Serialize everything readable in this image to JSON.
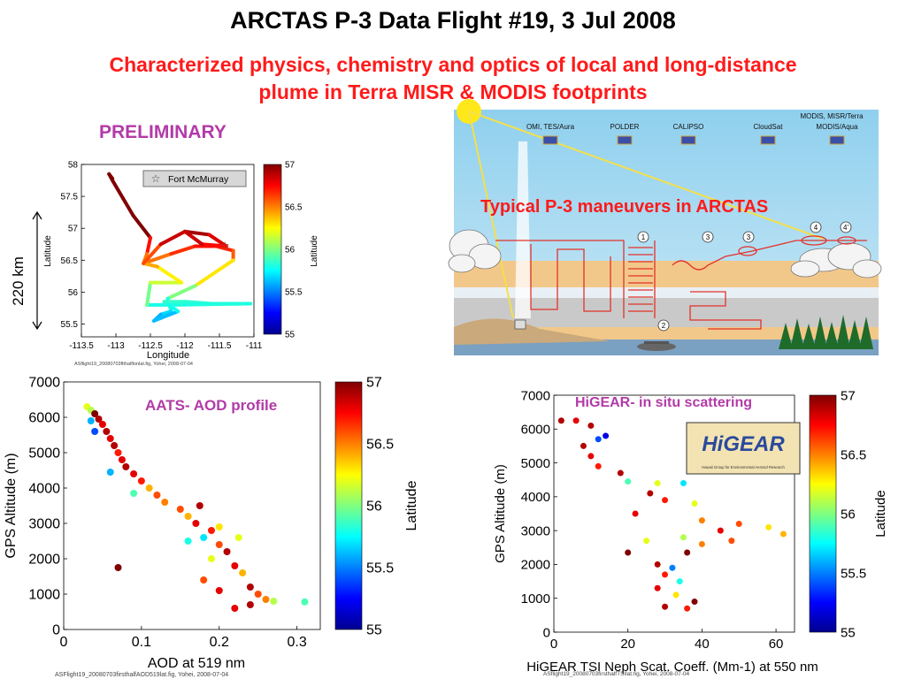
{
  "header": {
    "title": "ARCTAS P-3 Data Flight #19, 3 Jul 2008",
    "subtitle_line1": "Characterized physics, chemistry and optics of  local and long-distance",
    "subtitle_line2": "plume in Terra MISR & MODIS  footprints"
  },
  "annotations": {
    "preliminary": "PRELIMINARY",
    "scale_bar": "220 km",
    "aats_label": "AATS- AOD profile",
    "higear_label": "HiGEAR- in situ scattering",
    "maneuvers_label": "Typical P-3 maneuvers in ARCTAS",
    "higear_logo_text": "HiGEAR",
    "higear_logo_subtext": "Hawaii Group for Environmental Aerosol Research"
  },
  "diagram": {
    "satellites": [
      {
        "label": "OMI, TES/Aura"
      },
      {
        "label": "POLDER"
      },
      {
        "label": "CALIPSO"
      },
      {
        "label": "CloudSat"
      },
      {
        "label": "MODIS, MISR/Terra"
      },
      {
        "label": "MODIS/Aqua"
      }
    ],
    "markers": [
      "1",
      "2",
      "3",
      "3",
      "4",
      "4'"
    ]
  },
  "colorbar": {
    "ticks": [
      "57",
      "56.5",
      "56",
      "55.5",
      "55"
    ],
    "label": "Latitude"
  },
  "chart_data": [
    {
      "type": "scatter",
      "name": "map",
      "title": "",
      "xlabel": "Longitude",
      "ylabel": "Latitude",
      "xlim": [
        -113.5,
        -111
      ],
      "ylim": [
        55.3,
        58
      ],
      "xticks": [
        "-113.5",
        "-113",
        "-112.5",
        "-112",
        "-111.5",
        "-111"
      ],
      "yticks": [
        "58",
        "57.5",
        "57",
        "56.5",
        "56",
        "55.5"
      ],
      "legend": "Fort McMurray",
      "legend_position": "top-right",
      "caption": "ASflight19_20080703flthalflonlat.fig, Yohei, 2008-07-04",
      "track": [
        [
          -113.05,
          57.78
        ],
        [
          -113.1,
          57.85
        ],
        [
          -113.05,
          57.75
        ],
        [
          -112.75,
          57.2
        ],
        [
          -112.5,
          56.85
        ],
        [
          -112.55,
          56.6
        ],
        [
          -112.6,
          56.45
        ],
        [
          -112.2,
          56.6
        ],
        [
          -111.85,
          56.72
        ],
        [
          -111.55,
          56.72
        ],
        [
          -111.3,
          56.65
        ],
        [
          -111.3,
          56.5
        ],
        [
          -111.85,
          56.1
        ],
        [
          -112.25,
          55.9
        ],
        [
          -112.2,
          55.7
        ],
        [
          -112.35,
          55.65
        ],
        [
          -112.45,
          55.55
        ],
        [
          -112.1,
          55.7
        ],
        [
          -112.3,
          55.85
        ],
        [
          -112.0,
          55.85
        ],
        [
          -111.6,
          55.82
        ],
        [
          -111.05,
          55.82
        ],
        [
          -112.15,
          55.8
        ],
        [
          -112.55,
          55.8
        ],
        [
          -112.5,
          56.15
        ],
        [
          -112.05,
          56.15
        ],
        [
          -112.4,
          56.4
        ],
        [
          -112.6,
          56.45
        ],
        [
          -112.35,
          56.75
        ],
        [
          -112.0,
          56.95
        ],
        [
          -111.65,
          56.9
        ],
        [
          -111.4,
          56.72
        ],
        [
          -111.75,
          56.75
        ],
        [
          -112.0,
          56.95
        ]
      ],
      "fort_mcmurray": [
        -111.42,
        56.73
      ]
    },
    {
      "type": "scatter",
      "name": "aod_profile",
      "title": "",
      "xlabel": "AOD at 519 nm",
      "ylabel": "GPS Altitude (m)",
      "xlim": [
        0,
        0.33
      ],
      "ylim": [
        0,
        7000
      ],
      "xticks": [
        "0",
        "0.1",
        "0.2",
        "0.3"
      ],
      "yticks": [
        "0",
        "1000",
        "2000",
        "3000",
        "4000",
        "5000",
        "6000",
        "7000"
      ],
      "caption": "ASFlight19_20080703firsthalfAOD519lat.fig, Yohei, 2008-07-04",
      "points": [
        [
          0.03,
          6300,
          56.2
        ],
        [
          0.035,
          6200,
          56.1
        ],
        [
          0.04,
          6100,
          57
        ],
        [
          0.045,
          5950,
          56.9
        ],
        [
          0.05,
          5800,
          56.8
        ],
        [
          0.055,
          5600,
          56.9
        ],
        [
          0.06,
          5400,
          56.8
        ],
        [
          0.065,
          5200,
          56.9
        ],
        [
          0.07,
          5000,
          56.7
        ],
        [
          0.075,
          4800,
          56.8
        ],
        [
          0.08,
          4600,
          56.9
        ],
        [
          0.06,
          4450,
          55.6
        ],
        [
          0.09,
          4400,
          56.8
        ],
        [
          0.1,
          4200,
          56.7
        ],
        [
          0.11,
          4000,
          56.4
        ],
        [
          0.09,
          3850,
          55.9
        ],
        [
          0.12,
          3800,
          56.6
        ],
        [
          0.13,
          3600,
          56.5
        ],
        [
          0.15,
          3400,
          56.6
        ],
        [
          0.16,
          3200,
          56.4
        ],
        [
          0.17,
          3000,
          56.8
        ],
        [
          0.19,
          2800,
          56.7
        ],
        [
          0.18,
          2600,
          55.7
        ],
        [
          0.2,
          2400,
          56.6
        ],
        [
          0.21,
          2200,
          56.9
        ],
        [
          0.19,
          2000,
          56.2
        ],
        [
          0.22,
          1800,
          56.8
        ],
        [
          0.23,
          1600,
          56.4
        ],
        [
          0.18,
          1400,
          56.6
        ],
        [
          0.24,
          1200,
          56.9
        ],
        [
          0.25,
          1000,
          56.6
        ],
        [
          0.26,
          850,
          56.5
        ],
        [
          0.24,
          700,
          56.9
        ],
        [
          0.22,
          600,
          56.8
        ],
        [
          0.27,
          800,
          56.1
        ],
        [
          0.07,
          1750,
          57
        ],
        [
          0.31,
          780,
          55.9
        ],
        [
          0.04,
          5600,
          55.4
        ],
        [
          0.035,
          5900,
          55.6
        ],
        [
          0.2,
          2900,
          56.3
        ],
        [
          0.225,
          2600,
          56.2
        ],
        [
          0.16,
          2500,
          55.8
        ],
        [
          0.175,
          3500,
          56.9
        ],
        [
          0.2,
          1100,
          56.8
        ]
      ]
    },
    {
      "type": "scatter",
      "name": "scattering_profile",
      "title": "",
      "xlabel": "HiGEAR TSI Neph Scat. Coeff. (Mm-1) at 550 nm",
      "ylabel": "GPS Altitude (m)",
      "xlim": [
        0,
        65
      ],
      "ylim": [
        0,
        7000
      ],
      "xticks": [
        "0",
        "20",
        "40",
        "60"
      ],
      "yticks": [
        "0",
        "1000",
        "2000",
        "3000",
        "4000",
        "5000",
        "6000",
        "7000"
      ],
      "caption": "ASflight19_20080703firsthalfTSIlat.fig, Yohei, 2008-07-04",
      "points": [
        [
          2,
          6250,
          56.9
        ],
        [
          6,
          6250,
          56.8
        ],
        [
          10,
          6100,
          56.9
        ],
        [
          14,
          5800,
          55.2
        ],
        [
          12,
          5700,
          55.4
        ],
        [
          8,
          5500,
          56.9
        ],
        [
          10,
          5200,
          56.8
        ],
        [
          12,
          4900,
          56.7
        ],
        [
          18,
          4700,
          56.9
        ],
        [
          20,
          4450,
          55.9
        ],
        [
          28,
          4400,
          56.2
        ],
        [
          35,
          4400,
          55.7
        ],
        [
          26,
          4100,
          56.9
        ],
        [
          30,
          3900,
          56.7
        ],
        [
          38,
          3800,
          56.2
        ],
        [
          22,
          3500,
          56.8
        ],
        [
          40,
          3300,
          56.5
        ],
        [
          50,
          3200,
          56.6
        ],
        [
          58,
          3100,
          56.3
        ],
        [
          45,
          3000,
          56.8
        ],
        [
          62,
          2900,
          56.4
        ],
        [
          35,
          2800,
          56.1
        ],
        [
          25,
          2700,
          56.2
        ],
        [
          20,
          2350,
          57
        ],
        [
          36,
          2350,
          57
        ],
        [
          28,
          2000,
          56.9
        ],
        [
          32,
          1900,
          55.5
        ],
        [
          30,
          1700,
          56.7
        ],
        [
          34,
          1500,
          55.8
        ],
        [
          28,
          1300,
          56.8
        ],
        [
          33,
          1100,
          56.3
        ],
        [
          38,
          900,
          57
        ],
        [
          30,
          750,
          56.9
        ],
        [
          36,
          700,
          56.7
        ],
        [
          40,
          2600,
          56.5
        ],
        [
          48,
          2700,
          56.6
        ]
      ]
    }
  ]
}
